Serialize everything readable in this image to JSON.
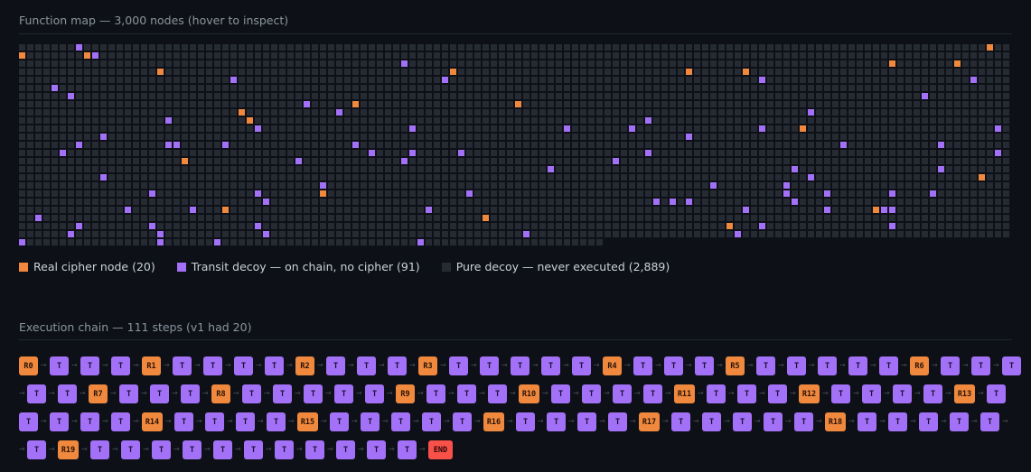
{
  "map": {
    "title": "Function map — 3,000 nodes (hover to inspect)",
    "total_nodes": 3000,
    "legend": {
      "real": "Real cipher node (20)",
      "transit": "Transit decoy — on chain, no cipher (91)",
      "pure": "Pure decoy — never executed (2,889)"
    },
    "colors": {
      "real": "#f0883e",
      "transit": "#a371f7",
      "pure": "#262b33"
    }
  },
  "chain": {
    "title": "Execution chain — 111 steps (v1 had 20)",
    "rows": [
      [
        "R0",
        "T",
        "T",
        "T",
        "R1",
        "T",
        "T",
        "T",
        "T",
        "R2",
        "T",
        "T",
        "T",
        "R3",
        "T",
        "T",
        "T",
        "T",
        "T",
        "R4",
        "T",
        "T",
        "T",
        "R5",
        "T",
        "T",
        "T",
        "T",
        "T",
        "R6",
        "T",
        "T",
        "T"
      ],
      [
        "T",
        "T",
        "R7",
        "T",
        "T",
        "T",
        "R8",
        "T",
        "T",
        "T",
        "T",
        "T",
        "R9",
        "T",
        "T",
        "T",
        "R10",
        "T",
        "T",
        "T",
        "T",
        "R11",
        "T",
        "T",
        "T",
        "R12",
        "T",
        "T",
        "T",
        "T",
        "R13",
        "T"
      ],
      [
        "T",
        "T",
        "T",
        "T",
        "R14",
        "T",
        "T",
        "T",
        "T",
        "R15",
        "T",
        "T",
        "T",
        "T",
        "T",
        "R16",
        "T",
        "T",
        "T",
        "T",
        "R17",
        "T",
        "T",
        "T",
        "T",
        "T",
        "R18",
        "T",
        "T",
        "T",
        "T",
        "T"
      ],
      [
        "T",
        "R19",
        "T",
        "T",
        "T",
        "T",
        "T",
        "T",
        "T",
        "T",
        "T",
        "T",
        "T",
        "END"
      ]
    ]
  }
}
